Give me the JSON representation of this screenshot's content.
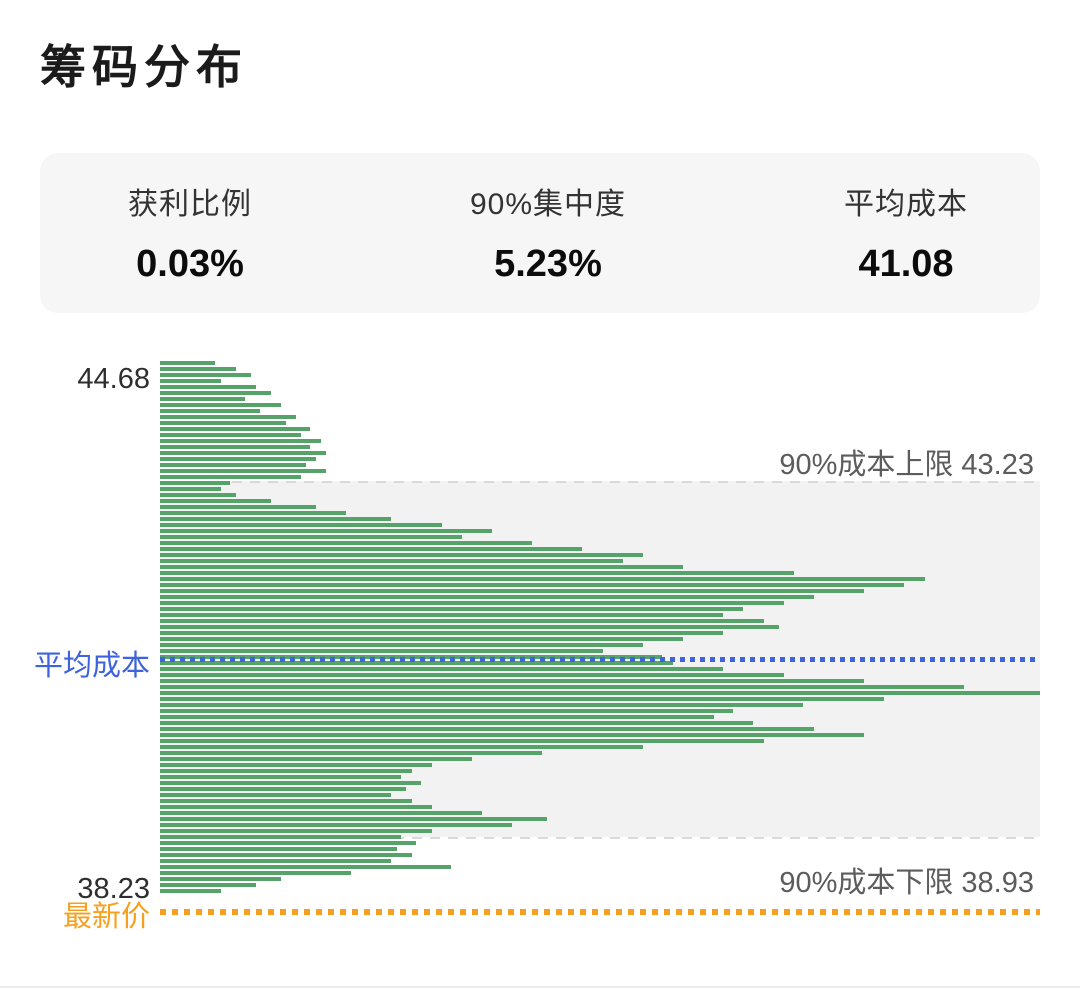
{
  "title": "筹码分布",
  "stats": [
    {
      "label": "获利比例",
      "value": "0.03%"
    },
    {
      "label": "90%集中度",
      "value": "5.23%"
    },
    {
      "label": "平均成本",
      "value": "41.08"
    }
  ],
  "chart": {
    "y_top_label": "44.68",
    "y_bottom_label": "38.23",
    "avg_cost_axis_label": "平均成本",
    "latest_price_label": "最新价",
    "upper_annotation": "90%成本上限 43.23",
    "lower_annotation": "90%成本下限 38.93"
  },
  "colors": {
    "bar_green": "#55a369",
    "avg_blue": "#3f62dd",
    "latest_orange": "#f5a01e",
    "band_gray": "#f2f2f3",
    "dash_gray": "#d9d9d9"
  },
  "chart_data": {
    "type": "bar",
    "orientation": "horizontal",
    "title": "筹码分布",
    "price_top": 44.68,
    "price_bottom": 38.23,
    "upper_90_value": 43.23,
    "average_cost_value": 41.08,
    "lower_90_value": 38.93,
    "profit_ratio": "0.03%",
    "concentration_90": "5.23%",
    "legend": "每根横条代表该价位的筹码量，长度为占最大值的百分比，价格自上而下由 44.68 递减至 38.23",
    "bar_lengths_pct": [
      6.3,
      8.6,
      10.3,
      6.9,
      10.9,
      12.6,
      9.7,
      13.7,
      11.4,
      15.4,
      14.3,
      17.1,
      16.0,
      18.3,
      17.1,
      18.9,
      17.7,
      16.6,
      18.9,
      16.0,
      8.0,
      6.9,
      8.6,
      12.6,
      17.7,
      21.1,
      26.3,
      32.0,
      37.7,
      34.3,
      42.3,
      48.0,
      54.9,
      52.6,
      59.4,
      72.0,
      86.9,
      84.6,
      80.0,
      74.3,
      70.9,
      66.3,
      64.0,
      68.6,
      70.3,
      64.0,
      59.4,
      54.9,
      50.3,
      57.1,
      58.3,
      64.0,
      70.9,
      80.0,
      91.4,
      100,
      82.3,
      73.1,
      65.1,
      62.9,
      67.4,
      74.3,
      80.0,
      68.6,
      54.9,
      43.4,
      35.4,
      30.9,
      28.6,
      27.4,
      29.7,
      28.0,
      26.3,
      28.6,
      30.9,
      36.6,
      44.0,
      40.0,
      30.9,
      27.4,
      29.1,
      26.9,
      28.6,
      26.3,
      33.1,
      21.7,
      13.7,
      10.9,
      6.9
    ]
  }
}
